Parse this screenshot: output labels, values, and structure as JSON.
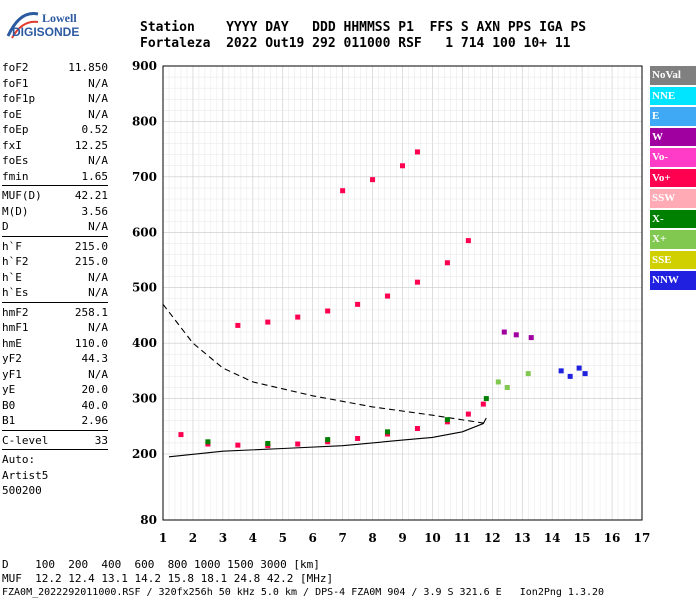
{
  "logo": {
    "line1": "Lowell",
    "line2": "DIGISONDE"
  },
  "header": {
    "row1": "Station    YYYY DAY   DDD HHMMSS P1  FFS S AXN PPS IGA PS",
    "row2": "Fortaleza  2022 Out19 292 011000 RSF   1 714 100 10+ 11"
  },
  "params": [
    {
      "name": "foF2",
      "value": "11.850"
    },
    {
      "name": "foF1",
      "value": "N/A"
    },
    {
      "name": "foF1p",
      "value": "N/A"
    },
    {
      "name": "foE",
      "value": "N/A"
    },
    {
      "name": "foEp",
      "value": "0.52"
    },
    {
      "name": "fxI",
      "value": "12.25"
    },
    {
      "name": "foEs",
      "value": "N/A"
    },
    {
      "name": "fmin",
      "value": "1.65"
    },
    {
      "sep": true
    },
    {
      "name": "MUF(D)",
      "value": "42.21"
    },
    {
      "name": "M(D)",
      "value": "3.56"
    },
    {
      "name": "D",
      "value": "N/A"
    },
    {
      "sep": true
    },
    {
      "name": "h`F",
      "value": "215.0"
    },
    {
      "name": "h`F2",
      "value": "215.0"
    },
    {
      "name": "h`E",
      "value": "N/A"
    },
    {
      "name": "h`Es",
      "value": "N/A"
    },
    {
      "sep": true
    },
    {
      "name": "hmF2",
      "value": "258.1"
    },
    {
      "name": "hmF1",
      "value": "N/A"
    },
    {
      "name": "hmE",
      "value": "110.0"
    },
    {
      "name": "yF2",
      "value": "44.3"
    },
    {
      "name": "yF1",
      "value": "N/A"
    },
    {
      "name": "yE",
      "value": "20.0"
    },
    {
      "name": "B0",
      "value": "40.0"
    },
    {
      "name": "B1",
      "value": "2.96"
    },
    {
      "sep": true
    },
    {
      "name": "C-level",
      "value": "33"
    },
    {
      "sep": true
    },
    {
      "name": "Auto:",
      "value": ""
    },
    {
      "name": "Artist5",
      "value": ""
    },
    {
      "name": "500200",
      "value": ""
    }
  ],
  "legend": [
    {
      "label": "NoVal",
      "color": "#808080"
    },
    {
      "label": "NNE",
      "color": "#00e5ff"
    },
    {
      "label": "E",
      "color": "#3fa9f5"
    },
    {
      "label": "W",
      "color": "#a000a0"
    },
    {
      "label": "Vo-",
      "color": "#ff3cc8"
    },
    {
      "label": "Vo+",
      "color": "#ff0050"
    },
    {
      "label": "SSW",
      "color": "#ffaab4"
    },
    {
      "label": "X-",
      "color": "#008000"
    },
    {
      "label": "X+",
      "color": "#80c850"
    },
    {
      "label": "SSE",
      "color": "#d0d000"
    },
    {
      "label": "NNW",
      "color": "#2020e0"
    }
  ],
  "bottom": {
    "d_row": "D    100  200  400  600  800 1000 1500 3000 [km]",
    "muf_row": "MUF  12.2 12.4 13.1 14.2 15.8 18.1 24.8 42.2 [MHz]",
    "file_row": "FZA0M_2022292011000.RSF / 320fx256h 50 kHz 5.0 km / DPS-4 FZA0M 904 / 3.9 S 321.6 E   Ion2Png 1.3.20"
  },
  "chart_data": {
    "type": "scatter",
    "x_ticks": [
      1,
      2,
      3,
      4,
      5,
      6,
      7,
      8,
      9,
      10,
      11,
      12,
      13,
      14,
      15,
      16,
      17
    ],
    "y_ticks": [
      80,
      200,
      300,
      400,
      500,
      600,
      700,
      800,
      900
    ],
    "xlim": [
      1,
      17
    ],
    "ylim": [
      80,
      900
    ],
    "grid": true,
    "series": [
      {
        "name": "Vo+",
        "values": [
          [
            1.6,
            235
          ],
          [
            2.5,
            218
          ],
          [
            3.5,
            216
          ],
          [
            4.5,
            215
          ],
          [
            5.5,
            218
          ],
          [
            6.5,
            222
          ],
          [
            7.5,
            228
          ],
          [
            8.5,
            236
          ],
          [
            9.5,
            246
          ],
          [
            10.5,
            258
          ],
          [
            11.2,
            272
          ],
          [
            11.7,
            290
          ]
        ]
      },
      {
        "name": "Vo+",
        "values": [
          [
            3.5,
            432
          ],
          [
            4.5,
            438
          ],
          [
            5.5,
            447
          ],
          [
            6.5,
            458
          ],
          [
            7.5,
            470
          ],
          [
            8.5,
            485
          ],
          [
            9.5,
            510
          ],
          [
            10.5,
            545
          ],
          [
            11.2,
            585
          ]
        ]
      },
      {
        "name": "Vo+",
        "values": [
          [
            7.0,
            675
          ],
          [
            8.0,
            695
          ],
          [
            9.0,
            720
          ],
          [
            9.5,
            745
          ]
        ]
      },
      {
        "name": "X-",
        "values": [
          [
            2.5,
            222
          ],
          [
            4.5,
            219
          ],
          [
            6.5,
            226
          ],
          [
            8.5,
            240
          ],
          [
            10.5,
            262
          ],
          [
            11.8,
            300
          ]
        ]
      },
      {
        "name": "NNW",
        "values": [
          [
            14.3,
            350
          ],
          [
            14.6,
            340
          ],
          [
            14.9,
            355
          ],
          [
            15.1,
            345
          ]
        ]
      },
      {
        "name": "X+",
        "values": [
          [
            12.2,
            330
          ],
          [
            12.5,
            320
          ],
          [
            13.2,
            345
          ]
        ]
      },
      {
        "name": "W",
        "values": [
          [
            12.4,
            420
          ],
          [
            12.8,
            415
          ],
          [
            13.3,
            410
          ]
        ]
      }
    ],
    "fitted_curves": [
      {
        "values": [
          [
            1.2,
            195
          ],
          [
            3,
            205
          ],
          [
            5,
            210
          ],
          [
            7,
            215
          ],
          [
            9,
            225
          ],
          [
            10,
            230
          ],
          [
            11,
            240
          ],
          [
            11.7,
            255
          ],
          [
            11.8,
            265
          ]
        ]
      },
      {
        "values": [
          [
            1.0,
            470
          ],
          [
            2,
            400
          ],
          [
            3,
            355
          ],
          [
            4,
            330
          ],
          [
            6,
            305
          ],
          [
            8,
            285
          ],
          [
            10,
            270
          ],
          [
            11.8,
            255
          ]
        ]
      }
    ]
  }
}
